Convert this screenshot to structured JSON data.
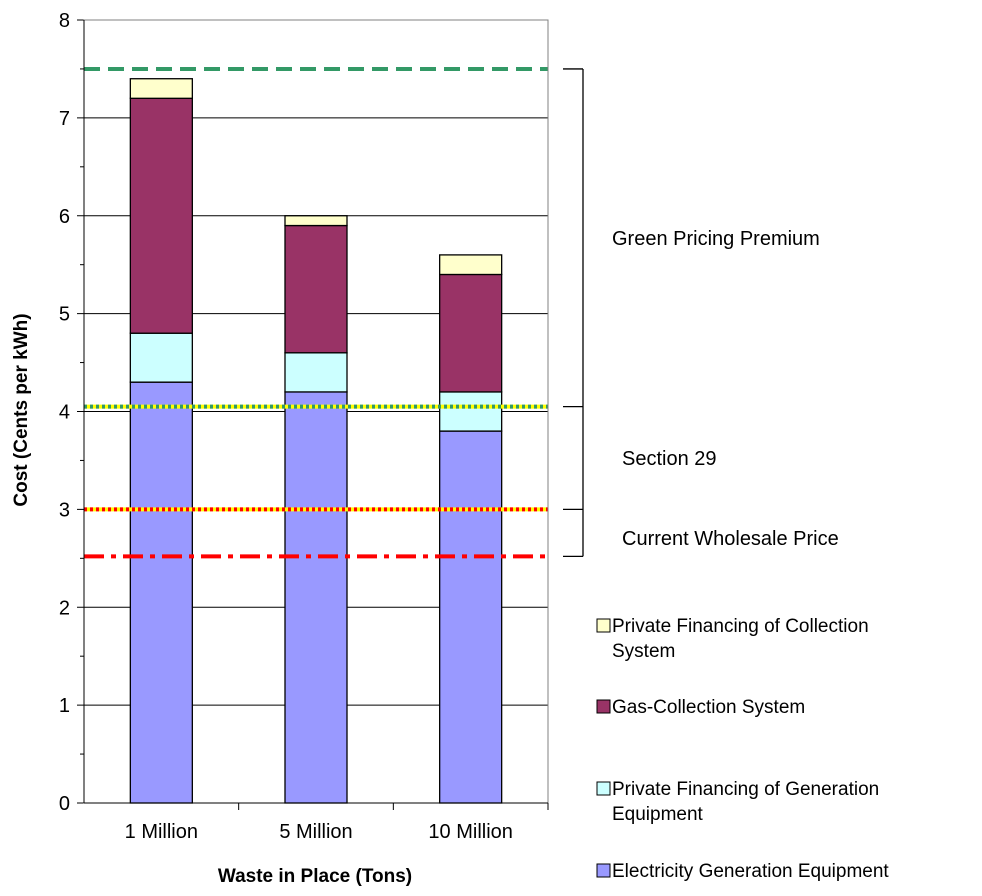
{
  "chart_data": {
    "type": "bar",
    "stacked": true,
    "xlabel": "Waste in Place (Tons)",
    "ylabel": "Cost (Cents per kWh)",
    "ylim": [
      0,
      8
    ],
    "yticks": [
      "0",
      "1",
      "2",
      "3",
      "4",
      "5",
      "6",
      "7",
      "8"
    ],
    "grid": true,
    "categories": [
      "1 Million",
      "5 Million",
      "10 Million"
    ],
    "series": [
      {
        "name": "Electricity Generation Equipment",
        "color": "#9999ff",
        "values": [
          4.3,
          4.2,
          3.8
        ]
      },
      {
        "name": "Private Financing of Generation Equipment",
        "color": "#ccffff",
        "values": [
          0.5,
          0.4,
          0.4
        ]
      },
      {
        "name": "Gas-Collection System",
        "color": "#993366",
        "values": [
          2.4,
          1.3,
          1.2
        ]
      },
      {
        "name": "Private Financing of Collection System",
        "color": "#ffffcc",
        "values": [
          0.2,
          0.1,
          0.2
        ]
      }
    ],
    "legend_order": [
      3,
      2,
      1,
      0
    ],
    "legend_placement": "bottom-right",
    "reference_lines": [
      {
        "value": 7.5,
        "style": "dashed",
        "colors": [
          "#339966"
        ]
      },
      {
        "value": 4.05,
        "style": "dotted",
        "colors": [
          "#339966",
          "#ffff00"
        ]
      },
      {
        "value": 3.0,
        "style": "dotted",
        "colors": [
          "#ff0000",
          "#ffff00"
        ]
      },
      {
        "value": 2.52,
        "style": "dash-dot",
        "colors": [
          "#ff0000"
        ]
      }
    ],
    "brackets": [
      {
        "from": 7.5,
        "to": 4.05,
        "label": "Green Pricing Premium"
      },
      {
        "from": 4.05,
        "to": 3.0,
        "label": "Section 29"
      },
      {
        "from": 3.0,
        "to": 2.52,
        "label": "Current Wholesale Price"
      }
    ]
  }
}
